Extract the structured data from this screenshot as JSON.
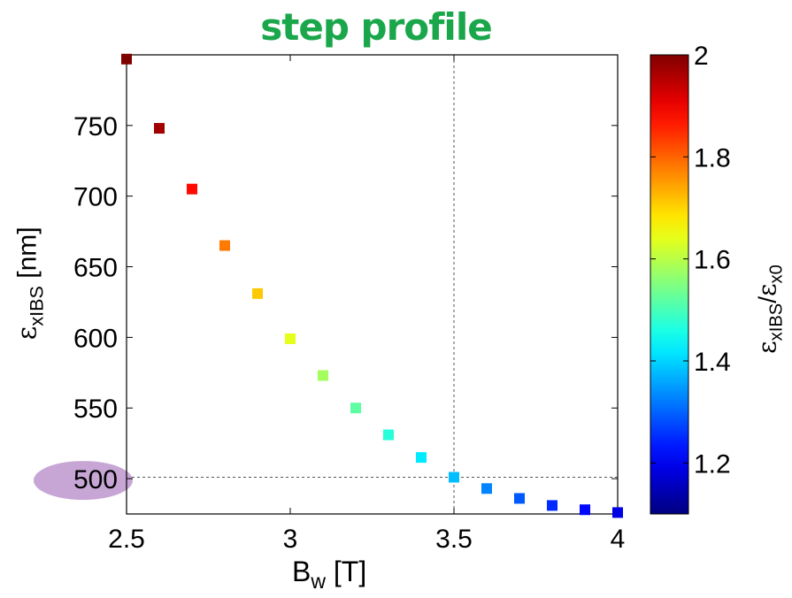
{
  "chart_data": {
    "type": "scatter",
    "title": "step profile",
    "xlabel": "B",
    "xlabel_sub": "w",
    "xlabel_unit": "[T]",
    "ylabel_symbol": "ε",
    "ylabel_sub": "xIBS",
    "ylabel_unit": "[nm]",
    "colorbar_label_num": "ε",
    "colorbar_label_num_sub": "xIBS",
    "colorbar_label_den": "ε",
    "colorbar_label_den_sub": "x0",
    "xlim": [
      2.5,
      4.0
    ],
    "ylim": [
      475,
      800
    ],
    "xticks": [
      "2.5",
      "3",
      "3.5",
      "4"
    ],
    "xtick_values": [
      2.5,
      3.0,
      3.5,
      4.0
    ],
    "yticks": [
      "500",
      "550",
      "600",
      "650",
      "700",
      "750"
    ],
    "ytick_values": [
      500,
      550,
      600,
      650,
      700,
      750
    ],
    "colorbar_range": [
      1.1,
      2.0
    ],
    "colorbar_ticks": [
      "1.2",
      "1.4",
      "1.6",
      "1.8",
      "2"
    ],
    "colorbar_tick_values": [
      1.2,
      1.4,
      1.6,
      1.8,
      2.0
    ],
    "colormap": "jet",
    "points": [
      {
        "x": 2.5,
        "y": 797,
        "c": 2.0
      },
      {
        "x": 2.6,
        "y": 748,
        "c": 1.97
      },
      {
        "x": 2.7,
        "y": 705,
        "c": 1.88
      },
      {
        "x": 2.8,
        "y": 665,
        "c": 1.78
      },
      {
        "x": 2.9,
        "y": 631,
        "c": 1.71
      },
      {
        "x": 3.0,
        "y": 599,
        "c": 1.64
      },
      {
        "x": 3.1,
        "y": 573,
        "c": 1.58
      },
      {
        "x": 3.2,
        "y": 550,
        "c": 1.52
      },
      {
        "x": 3.3,
        "y": 531,
        "c": 1.47
      },
      {
        "x": 3.4,
        "y": 515,
        "c": 1.42
      },
      {
        "x": 3.5,
        "y": 501,
        "c": 1.38
      },
      {
        "x": 3.6,
        "y": 493,
        "c": 1.33
      },
      {
        "x": 3.7,
        "y": 486,
        "c": 1.29
      },
      {
        "x": 3.8,
        "y": 481,
        "c": 1.25
      },
      {
        "x": 3.9,
        "y": 478,
        "c": 1.22
      },
      {
        "x": 4.0,
        "y": 476,
        "c": 1.19
      }
    ],
    "reference_lines": {
      "x": 3.5,
      "y": 501
    },
    "highlight_tick": "500",
    "highlight_color": "#c7a6d6",
    "title_color": "#1aa64a"
  }
}
